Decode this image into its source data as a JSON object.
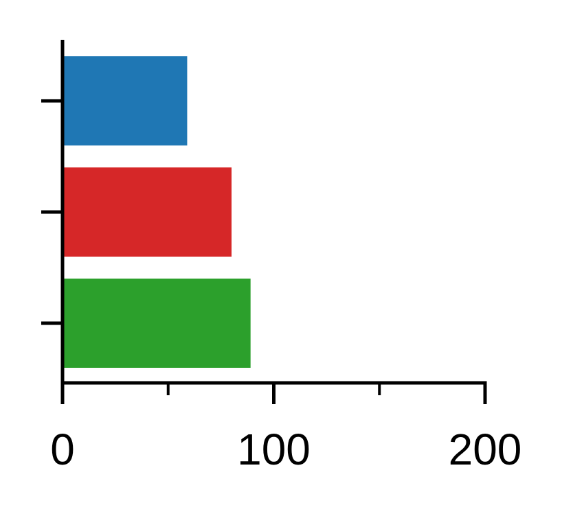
{
  "chart_data": {
    "type": "bar",
    "orientation": "horizontal",
    "title": "",
    "xlabel": "",
    "ylabel": "",
    "xlim": [
      0,
      200
    ],
    "xticks_major": [
      0,
      100,
      200
    ],
    "xtick_labels": [
      "0",
      "100",
      "200"
    ],
    "xticks_minor": [
      50,
      150
    ],
    "grid": false,
    "legend": "none",
    "bars": [
      {
        "value": 59,
        "color": "#1f77b4"
      },
      {
        "value": 80,
        "color": "#d62728"
      },
      {
        "value": 89,
        "color": "#2ca02c"
      }
    ]
  }
}
